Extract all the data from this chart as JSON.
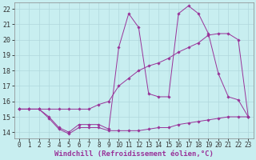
{
  "xlabel": "Windchill (Refroidissement éolien,°C)",
  "background_color": "#c8eef0",
  "grid_color": "#b0d8dc",
  "line_color": "#993399",
  "xlim": [
    -0.5,
    23.5
  ],
  "ylim": [
    13.6,
    22.4
  ],
  "xticks": [
    0,
    1,
    2,
    3,
    4,
    5,
    6,
    7,
    8,
    9,
    10,
    11,
    12,
    13,
    14,
    15,
    16,
    17,
    18,
    19,
    20,
    21,
    22,
    23
  ],
  "yticks": [
    14,
    15,
    16,
    17,
    18,
    19,
    20,
    21,
    22
  ],
  "series1_x": [
    0,
    1,
    2,
    3,
    4,
    5,
    6,
    7,
    8,
    9,
    10,
    11,
    12,
    13,
    14,
    15,
    16,
    17,
    18,
    19,
    20,
    21,
    22,
    23
  ],
  "series1_y": [
    15.5,
    15.5,
    15.5,
    14.9,
    14.2,
    13.9,
    14.3,
    14.3,
    14.3,
    14.1,
    14.1,
    14.1,
    14.1,
    14.2,
    14.3,
    14.3,
    14.5,
    14.6,
    14.7,
    14.8,
    14.9,
    15.0,
    15.0,
    15.0
  ],
  "series2_x": [
    0,
    1,
    2,
    3,
    4,
    5,
    6,
    7,
    8,
    9,
    10,
    11,
    12,
    13,
    14,
    15,
    16,
    17,
    18,
    19,
    20,
    21,
    22,
    23
  ],
  "series2_y": [
    15.5,
    15.5,
    15.5,
    15.0,
    14.3,
    14.0,
    14.5,
    14.5,
    14.5,
    14.2,
    19.5,
    21.7,
    20.8,
    16.5,
    16.3,
    16.3,
    21.7,
    22.2,
    21.7,
    20.4,
    17.8,
    16.3,
    16.1,
    15.0
  ],
  "series3_x": [
    0,
    1,
    2,
    3,
    4,
    5,
    6,
    7,
    8,
    9,
    10,
    11,
    12,
    13,
    14,
    15,
    16,
    17,
    18,
    19,
    20,
    21,
    22,
    23
  ],
  "series3_y": [
    15.5,
    15.5,
    15.5,
    15.5,
    15.5,
    15.5,
    15.5,
    15.5,
    15.8,
    16.0,
    17.0,
    17.5,
    18.0,
    18.3,
    18.5,
    18.8,
    19.2,
    19.5,
    19.8,
    20.3,
    20.4,
    20.4,
    20.0,
    15.0
  ],
  "xlabel_fontsize": 6.5,
  "tick_fontsize": 5.5
}
